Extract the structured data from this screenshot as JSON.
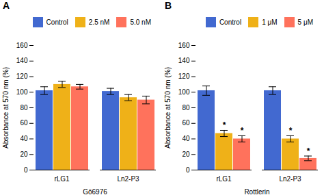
{
  "chart_data": [
    {
      "type": "bar",
      "title": "A",
      "categories": [
        "rLG1",
        "Ln2-P3"
      ],
      "xlabel": "Gö6976",
      "ylabel": "Absorbance at 570 nm (%)",
      "series": [
        {
          "name": "Control",
          "values": [
            102,
            101
          ],
          "errors": [
            5,
            4
          ]
        },
        {
          "name": "2.5 nM",
          "values": [
            110,
            93
          ],
          "errors": [
            4,
            4
          ]
        },
        {
          "name": "5.0 nM",
          "values": [
            107,
            90
          ],
          "errors": [
            3,
            5
          ]
        }
      ],
      "ylim": [
        0,
        160
      ],
      "yticks": [
        0,
        20,
        40,
        60,
        80,
        100,
        120,
        140,
        160
      ],
      "legend": "upper right",
      "grid": false
    },
    {
      "type": "bar",
      "title": "B",
      "categories": [
        "rLG1",
        "Ln2-P3"
      ],
      "xlabel": "Rottlerin",
      "ylabel": "Absorbance at 570 nm (%)",
      "series": [
        {
          "name": "Control",
          "values": [
            102,
            102
          ],
          "errors": [
            6,
            5
          ]
        },
        {
          "name": "1 μM",
          "values": [
            47,
            40
          ],
          "errors": [
            4,
            4
          ],
          "annotations": [
            "*",
            "*"
          ]
        },
        {
          "name": "5 μM",
          "values": [
            40,
            15
          ],
          "errors": [
            4,
            3
          ],
          "annotations": [
            "*",
            "*"
          ]
        }
      ],
      "ylim": [
        0,
        160
      ],
      "yticks": [
        0,
        20,
        40,
        60,
        80,
        100,
        120,
        140,
        160
      ],
      "legend": "upper right",
      "grid": false
    }
  ]
}
